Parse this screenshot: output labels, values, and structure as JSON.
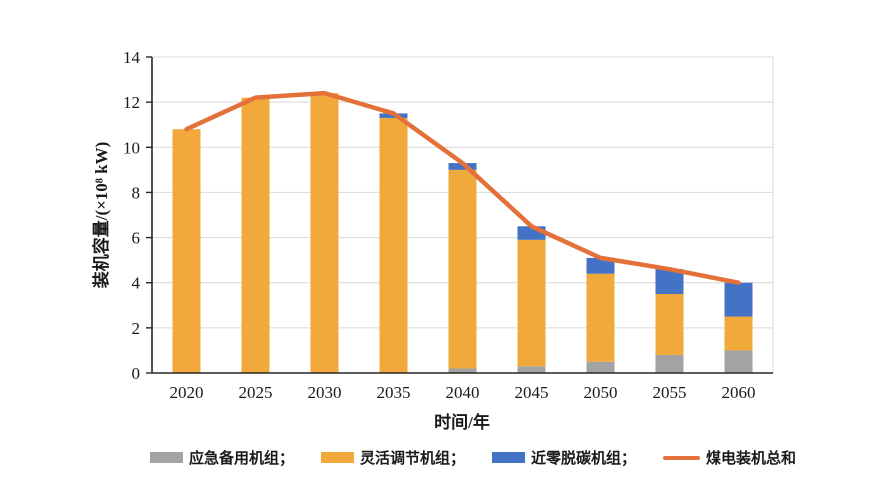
{
  "chart_data": {
    "type": "bar",
    "subtype": "stacked-bar-with-line",
    "title": "",
    "categories": [
      "2020",
      "2025",
      "2030",
      "2035",
      "2040",
      "2045",
      "2050",
      "2055",
      "2060"
    ],
    "series": [
      {
        "name": "应急备用机组",
        "kind": "bar",
        "color": "#a3a3a3",
        "values": [
          0,
          0,
          0,
          0,
          0.2,
          0.3,
          0.5,
          0.8,
          1.0
        ]
      },
      {
        "name": "灵活调节机组",
        "kind": "bar",
        "color": "#f2a93b",
        "values": [
          10.8,
          12.2,
          12.4,
          11.3,
          8.8,
          5.6,
          3.9,
          2.7,
          1.5
        ]
      },
      {
        "name": "近零脱碳机组",
        "kind": "bar",
        "color": "#4472c4",
        "values": [
          0,
          0,
          0,
          0.2,
          0.3,
          0.6,
          0.7,
          1.1,
          1.5
        ]
      },
      {
        "name": "煤电装机总和",
        "kind": "line",
        "color": "#e4703a",
        "values": [
          10.8,
          12.2,
          12.4,
          11.5,
          9.3,
          6.5,
          5.1,
          4.6,
          4.0
        ]
      }
    ],
    "xlabel": "时间/年",
    "ylabel": "装机容量/(×10⁸ kW)",
    "ylim": [
      0,
      14
    ],
    "ytick_step": 2,
    "yticks": [
      0,
      2,
      4,
      6,
      8,
      10,
      12,
      14
    ],
    "grid": true,
    "legend_position": "bottom"
  },
  "legend": {
    "items": [
      {
        "label": "应急备用机组；",
        "swatch": "bar",
        "series_index": 0
      },
      {
        "label": "灵活调节机组；",
        "swatch": "bar",
        "series_index": 1
      },
      {
        "label": "近零脱碳机组；",
        "swatch": "bar",
        "series_index": 2
      },
      {
        "label": "煤电装机总和",
        "swatch": "line",
        "series_index": 3
      }
    ]
  },
  "style_colors": {
    "gridline": "#d9d9d9",
    "axis": "#262626",
    "text": "#1a1a1a",
    "background": "#ffffff"
  }
}
